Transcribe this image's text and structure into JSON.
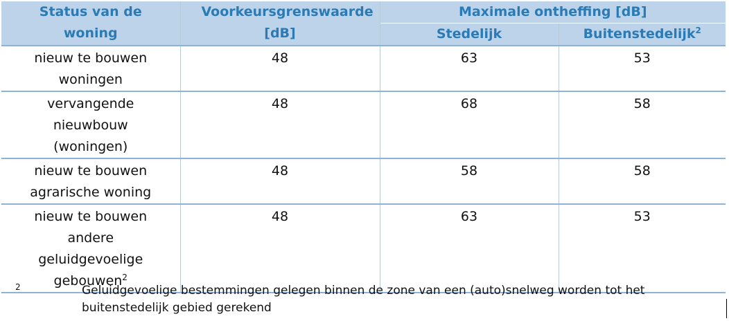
{
  "headers": {
    "status": "Status van de woning",
    "voorkeur": "Voorkeursgrenswaarde [dB]",
    "max": "Maximale ontheffing [dB]",
    "stedelijk": "Stedelijk",
    "buiten": "Buitenstedelijk",
    "buiten_sup": "2"
  },
  "rows": [
    {
      "status": "nieuw te bouwen woningen",
      "status_sup": "",
      "voorkeur": "48",
      "stedelijk": "63",
      "buiten": "53"
    },
    {
      "status": "vervangende nieuwbouw (woningen)",
      "status_sup": "",
      "voorkeur": "48",
      "stedelijk": "68",
      "buiten": "58"
    },
    {
      "status": "nieuw te bouwen agrarische woning",
      "status_sup": "",
      "voorkeur": "48",
      "stedelijk": "58",
      "buiten": "58"
    },
    {
      "status": "nieuw te bouwen andere geluidgevoelige gebouwen",
      "status_sup": "2",
      "voorkeur": "48",
      "stedelijk": "63",
      "buiten": "53"
    }
  ],
  "footnote": {
    "number": "2",
    "text": "Geluidgevoelige bestemmingen gelegen binnen de zone van een (auto)snelweg worden tot het buitenstedelijk gebied gerekend"
  }
}
